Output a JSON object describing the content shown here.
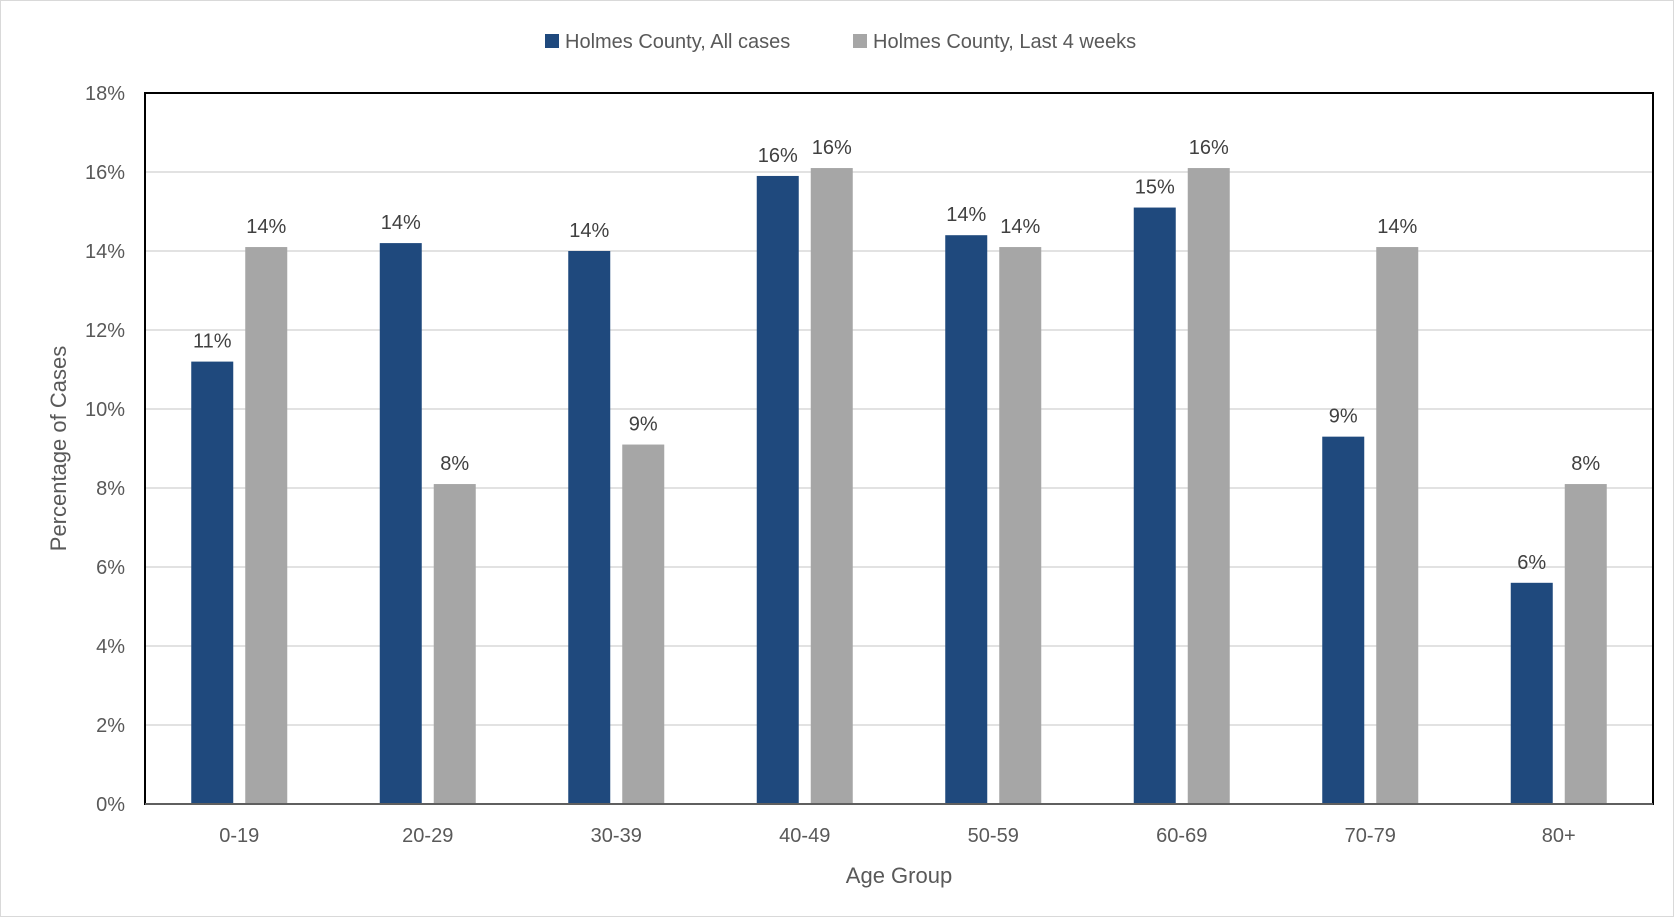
{
  "chart_data": {
    "type": "bar",
    "title": "",
    "xlabel": "Age Group",
    "ylabel": "Percentage of Cases",
    "categories": [
      "0-19",
      "20-29",
      "30-39",
      "40-49",
      "50-59",
      "60-69",
      "70-79",
      "80+"
    ],
    "series": [
      {
        "name": "Holmes County, All cases",
        "color": "#1f497d",
        "values": [
          11.2,
          14.2,
          14.0,
          15.9,
          14.4,
          15.1,
          9.3,
          5.6
        ],
        "labels": [
          "11%",
          "14%",
          "14%",
          "16%",
          "14%",
          "15%",
          "9%",
          "6%"
        ]
      },
      {
        "name": "Holmes County, Last 4 weeks",
        "color": "#a6a6a6",
        "values": [
          14.1,
          8.1,
          9.1,
          16.1,
          14.1,
          16.1,
          14.1,
          8.1
        ],
        "labels": [
          "14%",
          "8%",
          "9%",
          "16%",
          "14%",
          "16%",
          "14%",
          "8%"
        ]
      }
    ],
    "ylim": [
      0,
      18
    ],
    "yticks": [
      "0%",
      "2%",
      "4%",
      "6%",
      "8%",
      "10%",
      "12%",
      "14%",
      "16%",
      "18%"
    ],
    "grid": true,
    "legend_position": "top-center"
  }
}
